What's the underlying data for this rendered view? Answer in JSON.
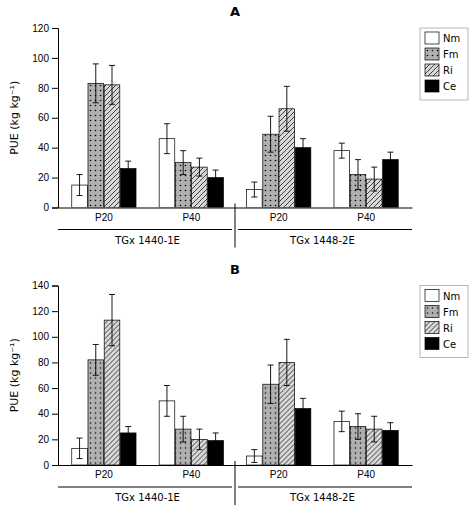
{
  "chart_data": [
    {
      "type": "bar",
      "title": "A",
      "y_label": "PUE (kg kg⁻¹)",
      "categories": [
        "P20",
        "P40",
        "P20",
        "P40"
      ],
      "annotations": [
        "TGx 1440-1E",
        "TGx 1448-2E"
      ],
      "ylim": [
        0,
        120
      ],
      "yticks": [
        0,
        20,
        40,
        60,
        80,
        100,
        120
      ],
      "grid": false,
      "legend": "upper right",
      "series": [
        {
          "name": "Nm",
          "color": "white",
          "values": [
            15,
            46,
            12,
            38
          ],
          "errors": [
            7,
            10,
            5,
            5
          ]
        },
        {
          "name": "Fm",
          "color": "#b0b0b0",
          "values": [
            83,
            30,
            49,
            22
          ],
          "errors": [
            13,
            8,
            12,
            10
          ]
        },
        {
          "name": "Ri",
          "color": "#d8d8d8",
          "values": [
            82,
            27,
            66,
            19
          ],
          "errors": [
            13,
            6,
            15,
            8
          ]
        },
        {
          "name": "Ce",
          "color": "black",
          "values": [
            26,
            20,
            40,
            32
          ],
          "errors": [
            5,
            5,
            6,
            5
          ]
        }
      ]
    },
    {
      "type": "bar",
      "title": "B",
      "y_label": "PUE (kg kg⁻¹)",
      "categories": [
        "P20",
        "P40",
        "P20",
        "P40"
      ],
      "annotations": [
        "TGx 1440-1E",
        "TGx 1448-2E"
      ],
      "ylim": [
        0,
        140
      ],
      "yticks": [
        0,
        20,
        40,
        60,
        80,
        100,
        120,
        140
      ],
      "grid": false,
      "legend": "upper right",
      "series": [
        {
          "name": "Nm",
          "color": "white",
          "values": [
            13,
            50,
            7,
            34
          ],
          "errors": [
            8,
            12,
            5,
            8
          ]
        },
        {
          "name": "Fm",
          "color": "#b0b0b0",
          "values": [
            82,
            28,
            63,
            30
          ],
          "errors": [
            12,
            10,
            15,
            10
          ]
        },
        {
          "name": "Ri",
          "color": "#d8d8d8",
          "values": [
            113,
            20,
            80,
            28
          ],
          "errors": [
            20,
            8,
            18,
            10
          ]
        },
        {
          "name": "Ce",
          "color": "black",
          "values": [
            25,
            19,
            44,
            27
          ],
          "errors": [
            5,
            6,
            8,
            6
          ]
        }
      ]
    }
  ]
}
